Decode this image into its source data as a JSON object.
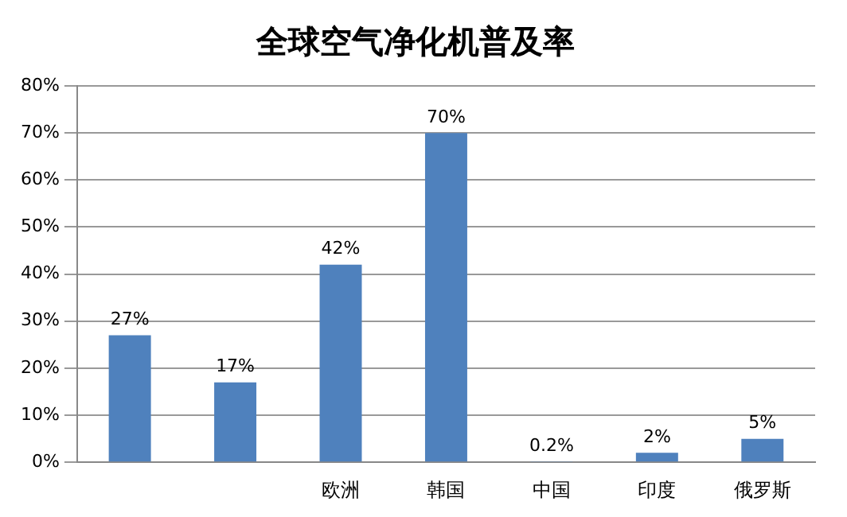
{
  "chart_data": {
    "type": "bar",
    "title": "全球空气净化机普及率",
    "categories": [
      null,
      null,
      "欧洲",
      "韩国",
      "中国",
      "印度",
      "俄罗斯"
    ],
    "values": [
      27,
      17,
      42,
      70,
      0.2,
      2,
      5
    ],
    "value_labels": [
      "27%",
      "17%",
      "42%",
      "70%",
      "0.2%",
      "2%",
      "5%"
    ],
    "color": "#4f81bd",
    "ylim": [
      0,
      80
    ],
    "yticks": [
      {
        "value": 0,
        "label": "0%"
      },
      {
        "value": 10,
        "label": "10%"
      },
      {
        "value": 20,
        "label": "20%"
      },
      {
        "value": 30,
        "label": "30%"
      },
      {
        "value": 40,
        "label": "40%"
      },
      {
        "value": 50,
        "label": "50%"
      },
      {
        "value": 60,
        "label": "60%"
      },
      {
        "value": 70,
        "label": "70%"
      },
      {
        "value": 80,
        "label": "80%"
      }
    ],
    "grid": "y",
    "legend": false
  }
}
